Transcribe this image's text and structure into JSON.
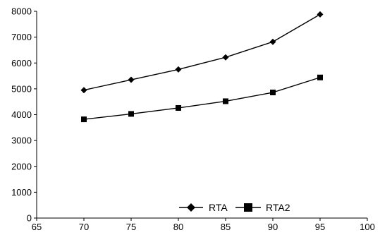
{
  "chart_data": {
    "type": "line",
    "title": "",
    "xlabel": "",
    "ylabel": "",
    "xlim": [
      65,
      100
    ],
    "ylim": [
      0,
      8000
    ],
    "x_ticks": [
      65,
      70,
      75,
      80,
      85,
      90,
      95,
      100
    ],
    "y_ticks": [
      0,
      1000,
      2000,
      3000,
      4000,
      5000,
      6000,
      7000,
      8000
    ],
    "grid": false,
    "legend_position": "bottom-center",
    "series": [
      {
        "name": "RTA",
        "marker": "diamond",
        "color": "#000000",
        "x": [
          70,
          75,
          80,
          85,
          90,
          95
        ],
        "y": [
          4950,
          5350,
          5750,
          6220,
          6820,
          7880
        ]
      },
      {
        "name": "RTA2",
        "marker": "square",
        "color": "#000000",
        "x": [
          70,
          75,
          80,
          85,
          90,
          95
        ],
        "y": [
          3820,
          4030,
          4260,
          4520,
          4860,
          5440
        ]
      }
    ]
  }
}
